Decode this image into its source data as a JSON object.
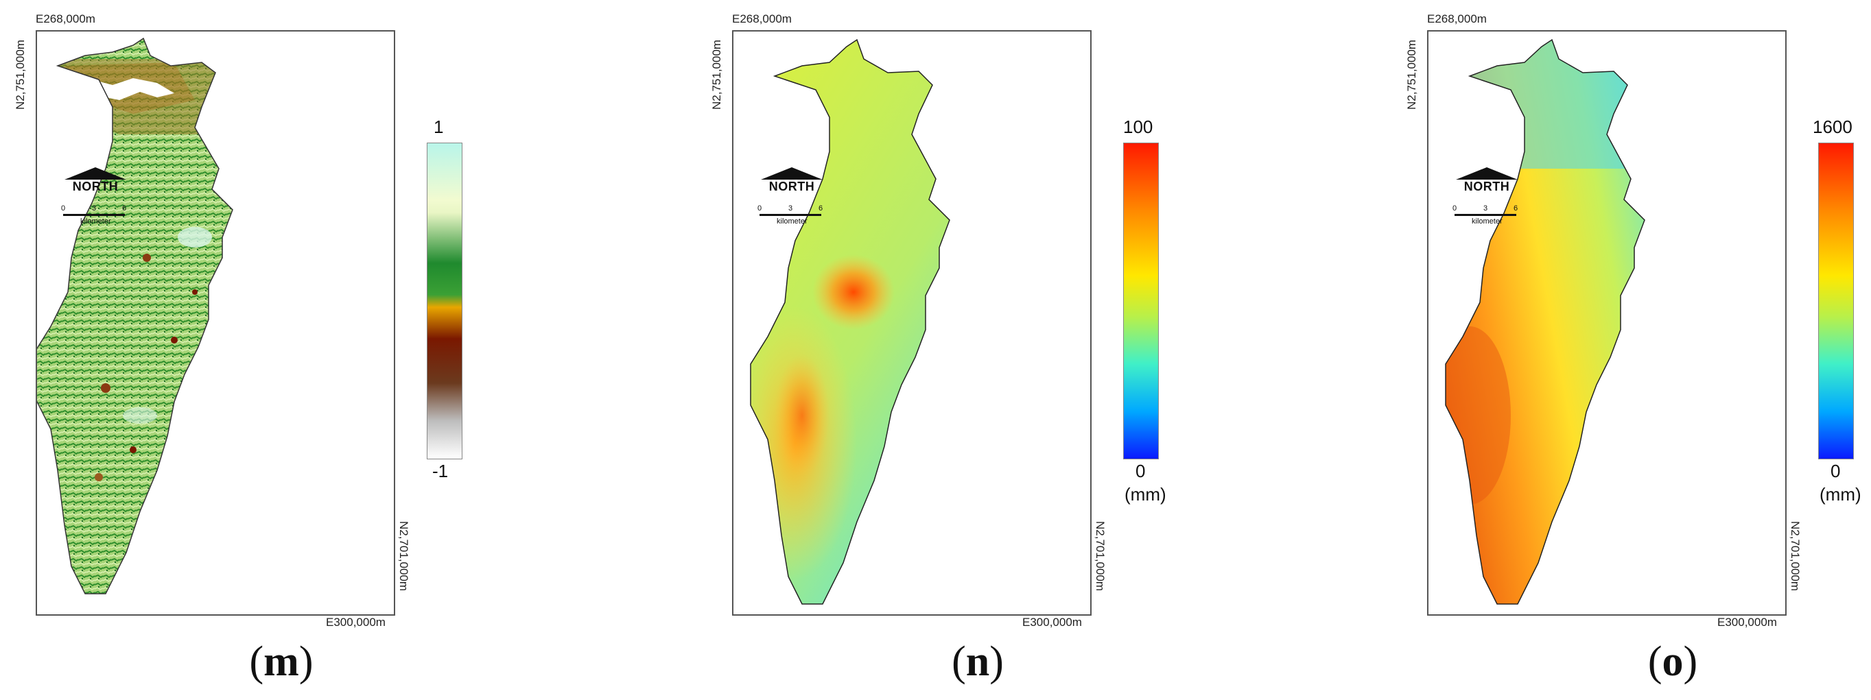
{
  "panels": [
    {
      "caption": "m",
      "coord_top_left": "E268,000m",
      "coord_left_vertical": "N2,751,000m",
      "coord_bottom_right": "E300,000m",
      "coord_right_vertical": "N2,701,000m",
      "north_label": "NORTH",
      "scale_ticks": [
        "0",
        "3",
        "6"
      ],
      "scale_unit": "kilometer",
      "colorbar_max": "1",
      "colorbar_min": "-1",
      "colorbar_unit": "",
      "colormap": [
        "#b9f5e9",
        "#f2fbd0",
        "#1f8a2e",
        "#e8a600",
        "#7a1800",
        "#6b3a1e",
        "#bdbdbd",
        "#ffffff"
      ]
    },
    {
      "caption": "n",
      "coord_top_left": "E268,000m",
      "coord_left_vertical": "N2,751,000m",
      "coord_bottom_right": "E300,000m",
      "coord_right_vertical": "N2,701,000m",
      "north_label": "NORTH",
      "scale_ticks": [
        "0",
        "3",
        "6"
      ],
      "scale_unit": "kilometer",
      "colorbar_max": "100",
      "colorbar_min": "0",
      "colorbar_unit": "(mm)",
      "colormap": [
        "#ff1a00",
        "#ff8c00",
        "#ffe800",
        "#b8f04a",
        "#40f0c8",
        "#00a8ff",
        "#0a1aff"
      ]
    },
    {
      "caption": "o",
      "coord_top_left": "E268,000m",
      "coord_left_vertical": "N2,751,000m",
      "coord_bottom_right": "E300,000m",
      "coord_right_vertical": "N2,701,000m",
      "north_label": "NORTH",
      "scale_ticks": [
        "0",
        "3",
        "6"
      ],
      "scale_unit": "kilometer",
      "colorbar_max": "1600",
      "colorbar_min": "0",
      "colorbar_unit": "(mm)",
      "colormap": [
        "#ff1a00",
        "#ff8c00",
        "#ffe800",
        "#b8f04a",
        "#40f0c8",
        "#00a8ff",
        "#0a1aff"
      ]
    }
  ]
}
